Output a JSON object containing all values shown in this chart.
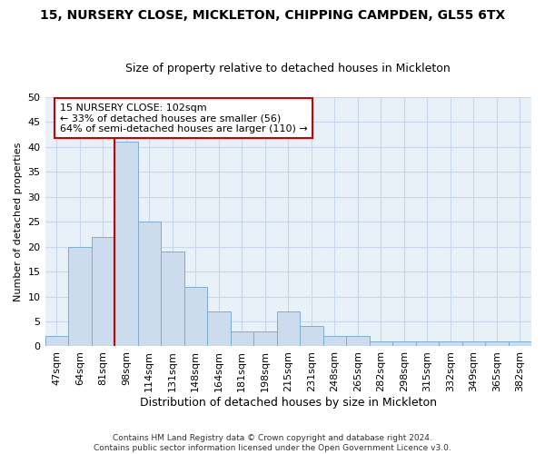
{
  "title": "15, NURSERY CLOSE, MICKLETON, CHIPPING CAMPDEN, GL55 6TX",
  "subtitle": "Size of property relative to detached houses in Mickleton",
  "xlabel": "Distribution of detached houses by size in Mickleton",
  "ylabel": "Number of detached properties",
  "categories": [
    "47sqm",
    "64sqm",
    "81sqm",
    "98sqm",
    "114sqm",
    "131sqm",
    "148sqm",
    "164sqm",
    "181sqm",
    "198sqm",
    "215sqm",
    "231sqm",
    "248sqm",
    "265sqm",
    "282sqm",
    "298sqm",
    "315sqm",
    "332sqm",
    "349sqm",
    "365sqm",
    "382sqm"
  ],
  "values": [
    2,
    20,
    22,
    41,
    25,
    19,
    12,
    7,
    3,
    3,
    7,
    4,
    2,
    2,
    1,
    1,
    1,
    1,
    1,
    1,
    1
  ],
  "bar_color": "#ccdcee",
  "bar_edge_color": "#7aaed0",
  "red_line_color": "#cc0000",
  "red_line_x": 3.0,
  "annotation_line1": "15 NURSERY CLOSE: 102sqm",
  "annotation_line2": "← 33% of detached houses are smaller (56)",
  "annotation_line3": "64% of semi-detached houses are larger (110) →",
  "annotation_box_color": "#ffffff",
  "annotation_box_edge": "#cc0000",
  "footer_line1": "Contains HM Land Registry data © Crown copyright and database right 2024.",
  "footer_line2": "Contains public sector information licensed under the Open Government Licence v3.0.",
  "ylim": [
    0,
    50
  ],
  "yticks": [
    0,
    5,
    10,
    15,
    20,
    25,
    30,
    35,
    40,
    45,
    50
  ],
  "grid_color": "#c8d8ec",
  "background_color": "#e8f0f8",
  "title_fontsize": 10,
  "subtitle_fontsize": 9,
  "xlabel_fontsize": 9,
  "ylabel_fontsize": 8,
  "tick_fontsize": 8,
  "footer_fontsize": 6.5
}
